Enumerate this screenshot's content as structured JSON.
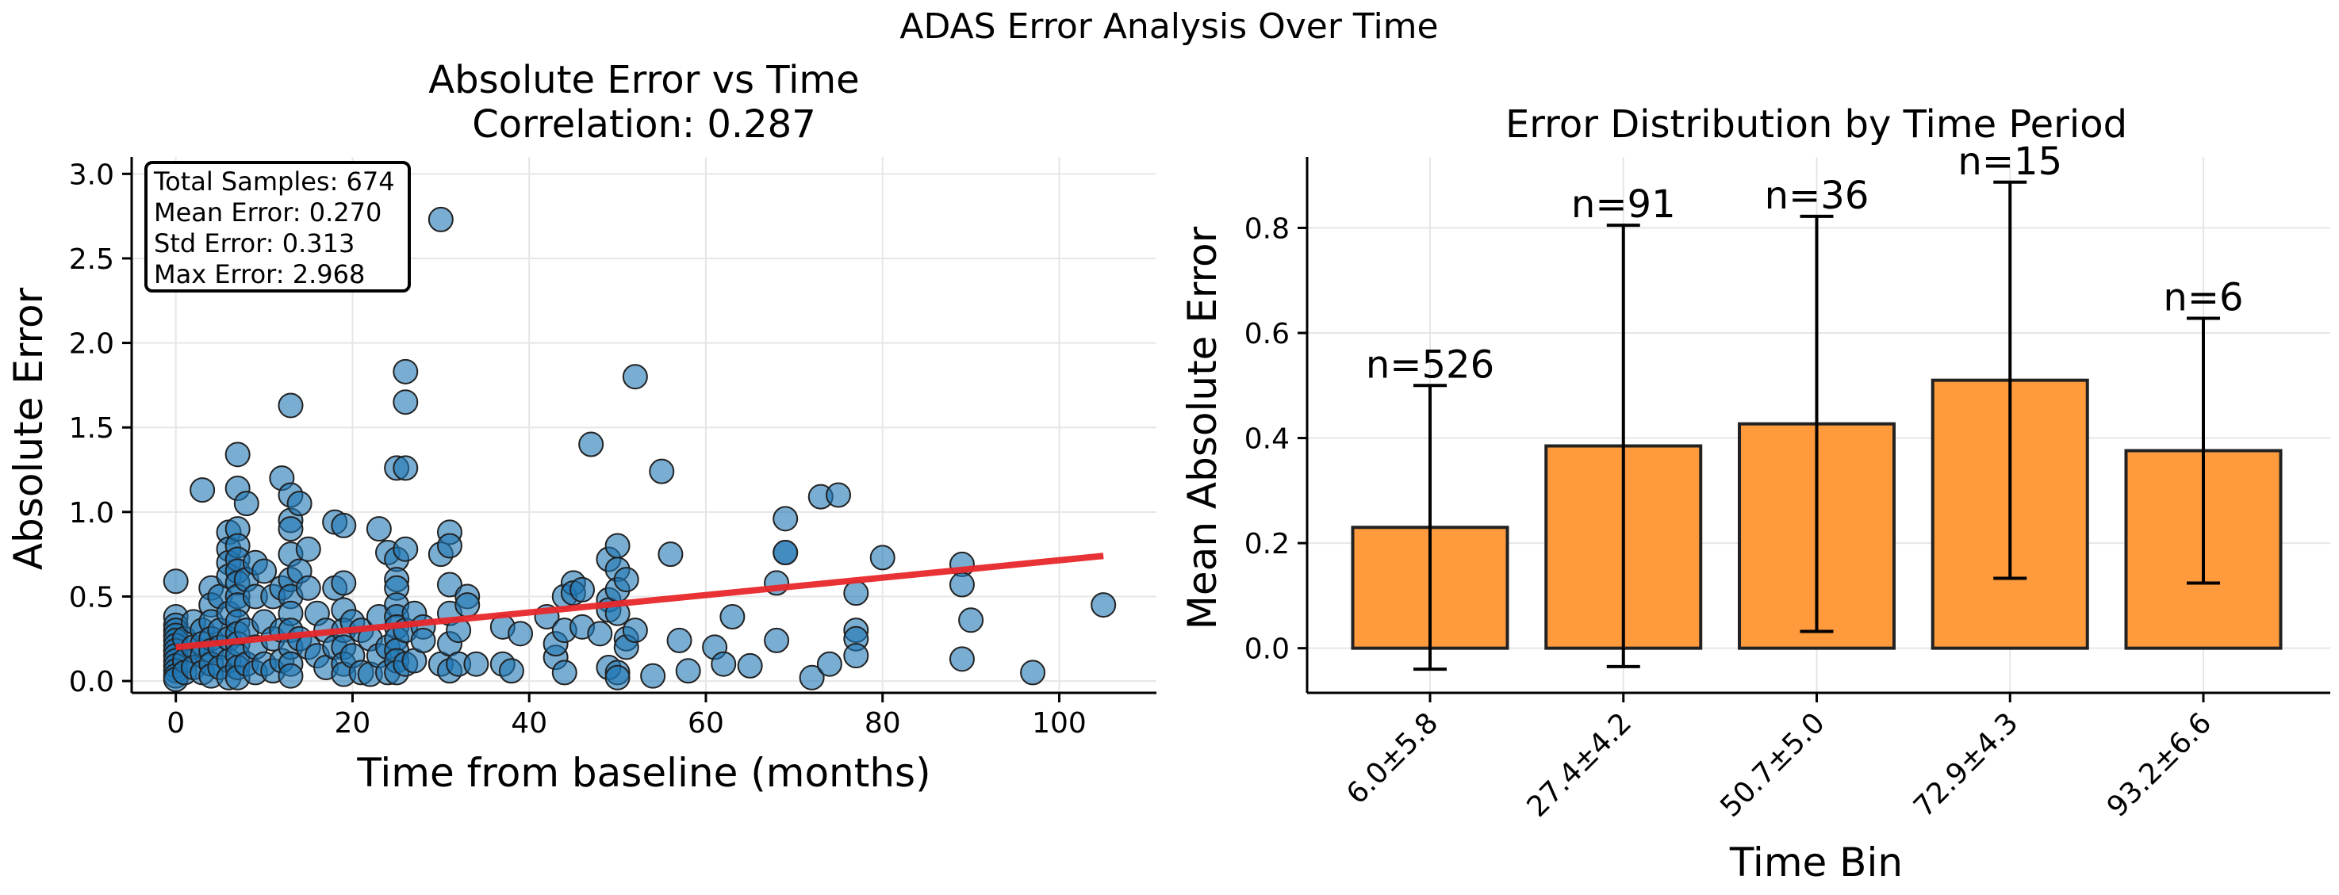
{
  "suptitle": "ADAS Error Analysis Over Time",
  "colors": {
    "scatter_fill": "#1f77b4",
    "trend_line": "#e8282b",
    "bar_fill": "#ff9a3d",
    "edge": "#222222",
    "grid": "#e6e6e6"
  },
  "chart_data": [
    {
      "type": "scatter",
      "title": "Absolute Error vs Time",
      "subtitle": "Correlation: 0.287",
      "xlabel": "Time from baseline (months)",
      "ylabel": "Absolute Error",
      "xlim": [
        -5,
        111
      ],
      "ylim": [
        -0.07,
        3.1
      ],
      "xticks": [
        0,
        20,
        40,
        60,
        80,
        100
      ],
      "yticks": [
        0.0,
        0.5,
        1.0,
        1.5,
        2.0,
        2.5,
        3.0
      ],
      "xtick_labels": [
        "0",
        "20",
        "40",
        "60",
        "80",
        "100"
      ],
      "ytick_labels": [
        "0.0",
        "0.5",
        "1.0",
        "1.5",
        "2.0",
        "2.5",
        "3.0"
      ],
      "grid": true,
      "stats_box": [
        "Total Samples: 674",
        "Mean Error: 0.270",
        "Std Error: 0.313",
        "Max Error: 2.968"
      ],
      "trend_line": {
        "x": [
          0,
          105
        ],
        "y": [
          0.2,
          0.74
        ]
      },
      "points": [
        [
          0,
          0.59
        ],
        [
          0,
          0.38
        ],
        [
          0,
          0.33
        ],
        [
          0,
          0.3
        ],
        [
          0,
          0.27
        ],
        [
          0,
          0.24
        ],
        [
          0,
          0.21
        ],
        [
          0,
          0.18
        ],
        [
          0,
          0.15
        ],
        [
          0,
          0.12
        ],
        [
          0,
          0.09
        ],
        [
          0,
          0.06
        ],
        [
          0,
          0.03
        ],
        [
          0,
          0.01
        ],
        [
          1,
          0.25
        ],
        [
          1,
          0.12
        ],
        [
          1,
          0.05
        ],
        [
          2,
          0.35
        ],
        [
          2,
          0.2
        ],
        [
          2,
          0.08
        ],
        [
          3,
          1.13
        ],
        [
          3,
          0.3
        ],
        [
          3,
          0.22
        ],
        [
          3,
          0.15
        ],
        [
          3,
          0.05
        ],
        [
          4,
          0.55
        ],
        [
          4,
          0.45
        ],
        [
          4,
          0.35
        ],
        [
          4,
          0.25
        ],
        [
          4,
          0.18
        ],
        [
          4,
          0.1
        ],
        [
          4,
          0.03
        ],
        [
          5,
          0.5
        ],
        [
          5,
          0.3
        ],
        [
          5,
          0.2
        ],
        [
          5,
          0.08
        ],
        [
          6,
          0.88
        ],
        [
          6,
          0.78
        ],
        [
          6,
          0.7
        ],
        [
          6,
          0.62
        ],
        [
          6,
          0.4
        ],
        [
          6,
          0.25
        ],
        [
          6,
          0.12
        ],
        [
          6,
          0.02
        ],
        [
          7,
          1.34
        ],
        [
          7,
          1.14
        ],
        [
          7,
          0.9
        ],
        [
          7,
          0.8
        ],
        [
          7,
          0.72
        ],
        [
          7,
          0.65
        ],
        [
          7,
          0.58
        ],
        [
          7,
          0.5
        ],
        [
          7,
          0.45
        ],
        [
          7,
          0.35
        ],
        [
          7,
          0.28
        ],
        [
          7,
          0.22
        ],
        [
          7,
          0.15
        ],
        [
          7,
          0.08
        ],
        [
          7,
          0.02
        ],
        [
          8,
          1.05
        ],
        [
          8,
          0.6
        ],
        [
          8,
          0.3
        ],
        [
          8,
          0.1
        ],
        [
          9,
          0.7
        ],
        [
          9,
          0.5
        ],
        [
          9,
          0.2
        ],
        [
          9,
          0.05
        ],
        [
          10,
          0.65
        ],
        [
          10,
          0.35
        ],
        [
          10,
          0.1
        ],
        [
          11,
          0.5
        ],
        [
          11,
          0.25
        ],
        [
          11,
          0.06
        ],
        [
          12,
          1.2
        ],
        [
          12,
          0.55
        ],
        [
          12,
          0.3
        ],
        [
          12,
          0.12
        ],
        [
          13,
          1.63
        ],
        [
          13,
          1.1
        ],
        [
          13,
          0.95
        ],
        [
          13,
          0.9
        ],
        [
          13,
          0.75
        ],
        [
          13,
          0.6
        ],
        [
          13,
          0.5
        ],
        [
          13,
          0.4
        ],
        [
          13,
          0.3
        ],
        [
          13,
          0.2
        ],
        [
          13,
          0.1
        ],
        [
          13,
          0.03
        ],
        [
          14,
          1.05
        ],
        [
          14,
          0.65
        ],
        [
          14,
          0.25
        ],
        [
          15,
          0.78
        ],
        [
          15,
          0.55
        ],
        [
          15,
          0.2
        ],
        [
          16,
          0.4
        ],
        [
          16,
          0.15
        ],
        [
          17,
          0.3
        ],
        [
          17,
          0.08
        ],
        [
          18,
          0.94
        ],
        [
          18,
          0.55
        ],
        [
          18,
          0.2
        ],
        [
          19,
          0.92
        ],
        [
          19,
          0.58
        ],
        [
          19,
          0.42
        ],
        [
          19,
          0.3
        ],
        [
          19,
          0.2
        ],
        [
          19,
          0.1
        ],
        [
          19,
          0.04
        ],
        [
          20,
          0.35
        ],
        [
          20,
          0.15
        ],
        [
          21,
          0.3
        ],
        [
          21,
          0.05
        ],
        [
          22,
          0.25
        ],
        [
          22,
          0.04
        ],
        [
          23,
          0.9
        ],
        [
          23,
          0.38
        ],
        [
          23,
          0.15
        ],
        [
          24,
          0.76
        ],
        [
          24,
          0.2
        ],
        [
          24,
          0.05
        ],
        [
          25,
          1.26
        ],
        [
          25,
          0.72
        ],
        [
          25,
          0.6
        ],
        [
          25,
          0.55
        ],
        [
          25,
          0.45
        ],
        [
          25,
          0.38
        ],
        [
          25,
          0.32
        ],
        [
          25,
          0.25
        ],
        [
          25,
          0.18
        ],
        [
          25,
          0.12
        ],
        [
          25,
          0.05
        ],
        [
          26,
          1.83
        ],
        [
          26,
          1.65
        ],
        [
          26,
          1.26
        ],
        [
          26,
          0.78
        ],
        [
          26,
          0.3
        ],
        [
          26,
          0.1
        ],
        [
          27,
          0.4
        ],
        [
          27,
          0.12
        ],
        [
          28,
          0.32
        ],
        [
          28,
          0.24
        ],
        [
          30,
          2.73
        ],
        [
          30,
          0.75
        ],
        [
          30,
          0.1
        ],
        [
          31,
          0.88
        ],
        [
          31,
          0.8
        ],
        [
          31,
          0.57
        ],
        [
          31,
          0.4
        ],
        [
          31,
          0.22
        ],
        [
          31,
          0.06
        ],
        [
          32,
          0.3
        ],
        [
          32,
          0.1
        ],
        [
          33,
          0.5
        ],
        [
          33,
          0.45
        ],
        [
          34,
          0.1
        ],
        [
          37,
          0.32
        ],
        [
          37,
          0.1
        ],
        [
          38,
          0.06
        ],
        [
          39,
          0.28
        ],
        [
          42,
          0.38
        ],
        [
          43,
          0.14
        ],
        [
          43,
          0.22
        ],
        [
          44,
          0.5
        ],
        [
          44,
          0.3
        ],
        [
          44,
          0.05
        ],
        [
          45,
          0.58
        ],
        [
          45,
          0.52
        ],
        [
          46,
          0.54
        ],
        [
          46,
          0.32
        ],
        [
          47,
          1.4
        ],
        [
          48,
          0.28
        ],
        [
          49,
          0.72
        ],
        [
          49,
          0.48
        ],
        [
          49,
          0.42
        ],
        [
          49,
          0.08
        ],
        [
          50,
          0.8
        ],
        [
          50,
          0.66
        ],
        [
          50,
          0.54
        ],
        [
          50,
          0.4
        ],
        [
          50,
          0.05
        ],
        [
          50,
          0.02
        ],
        [
          51,
          0.6
        ],
        [
          51,
          0.25
        ],
        [
          51,
          0.2
        ],
        [
          52,
          1.8
        ],
        [
          52,
          0.3
        ],
        [
          54,
          0.03
        ],
        [
          55,
          1.24
        ],
        [
          56,
          0.75
        ],
        [
          57,
          0.24
        ],
        [
          58,
          0.06
        ],
        [
          61,
          0.2
        ],
        [
          62,
          0.1
        ],
        [
          63,
          0.38
        ],
        [
          65,
          0.09
        ],
        [
          68,
          0.58
        ],
        [
          68,
          0.24
        ],
        [
          69,
          0.96
        ],
        [
          69,
          0.76
        ],
        [
          69,
          0.76
        ],
        [
          72,
          0.02
        ],
        [
          73,
          1.09
        ],
        [
          74,
          0.1
        ],
        [
          75,
          1.1
        ],
        [
          77,
          0.52
        ],
        [
          77,
          0.3
        ],
        [
          77,
          0.25
        ],
        [
          77,
          0.15
        ],
        [
          80,
          0.73
        ],
        [
          89,
          0.69
        ],
        [
          89,
          0.57
        ],
        [
          89,
          0.13
        ],
        [
          90,
          0.36
        ],
        [
          97,
          0.05
        ],
        [
          105,
          0.45
        ]
      ]
    },
    {
      "type": "bar",
      "title": "Error Distribution by Time Period",
      "xlabel": "Time Bin",
      "ylabel": "Mean Absolute Error",
      "categories": [
        "6.0±5.8",
        "27.4±4.2",
        "50.7±5.0",
        "72.9±4.3",
        "93.2±6.6"
      ],
      "values": [
        0.23,
        0.385,
        0.427,
        0.51,
        0.376
      ],
      "error": [
        0.27,
        0.42,
        0.395,
        0.377,
        0.252
      ],
      "counts": [
        "n=526",
        "n=91",
        "n=36",
        "n=15",
        "n=6"
      ],
      "ylim": [
        -0.085,
        0.935
      ],
      "yticks": [
        0.0,
        0.2,
        0.4,
        0.6,
        0.8
      ],
      "ytick_labels": [
        "0.0",
        "0.2",
        "0.4",
        "0.6",
        "0.8"
      ],
      "grid": true
    }
  ]
}
